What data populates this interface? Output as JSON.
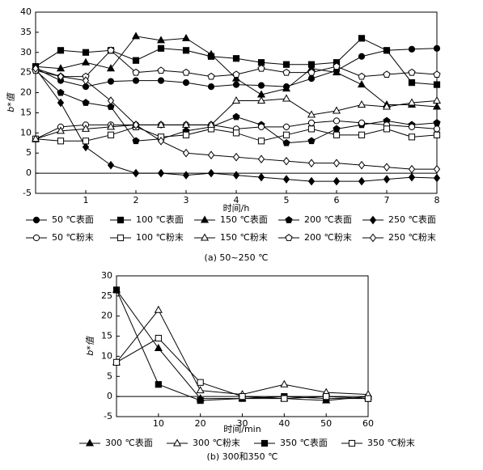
{
  "chart_data": [
    {
      "type": "line",
      "caption": "(a) 50~250 ℃",
      "x_label": "时间/h",
      "y_label": "b*值",
      "x": [
        0,
        0.5,
        1,
        1.5,
        2,
        2.5,
        3,
        3.5,
        4,
        4.5,
        5,
        5.5,
        6,
        6.5,
        7,
        7.5,
        8
      ],
      "xlim": [
        0,
        8
      ],
      "xticks": [
        1,
        2,
        3,
        4,
        5,
        6,
        7,
        8
      ],
      "ylim": [
        -5,
        40
      ],
      "yticks": [
        -5,
        0,
        5,
        10,
        15,
        20,
        25,
        30,
        35,
        40
      ],
      "series": [
        {
          "name": "50 ℃表面",
          "color": "#000000",
          "marker": "circle",
          "filled": true,
          "values": [
            26,
            23,
            21.5,
            22.8,
            23,
            23,
            22.5,
            21.5,
            22,
            21.8,
            21.5,
            23.5,
            25.5,
            29,
            30.5,
            30.8,
            31
          ]
        },
        {
          "name": "100 ℃表面",
          "color": "#000000",
          "marker": "square",
          "filled": true,
          "values": [
            26.5,
            30.5,
            30,
            30.5,
            28,
            31,
            30.5,
            29,
            28.5,
            27.5,
            27,
            27,
            27.5,
            33.5,
            30.5,
            22.5,
            22
          ]
        },
        {
          "name": "150 ℃表面",
          "color": "#000000",
          "marker": "triangle",
          "filled": true,
          "values": [
            26.5,
            26,
            27.5,
            26,
            34,
            33,
            33.5,
            29.5,
            23.5,
            19.5,
            21,
            26,
            25,
            22,
            17,
            17,
            16.5
          ]
        },
        {
          "name": "200 ℃表面",
          "color": "#000000",
          "marker": "pentagon",
          "filled": true,
          "values": [
            25.5,
            20,
            17.5,
            16.5,
            8,
            8.5,
            10.5,
            11.5,
            14,
            12,
            7.5,
            8,
            11,
            12,
            13,
            12,
            12.5
          ]
        },
        {
          "name": "250 ℃表面",
          "color": "#000000",
          "marker": "diamond",
          "filled": true,
          "values": [
            26,
            17.5,
            6.5,
            2,
            0,
            0,
            -0.5,
            0,
            -0.5,
            -1,
            -1.5,
            -2,
            -2,
            -2,
            -1.5,
            -1,
            -1.2
          ]
        },
        {
          "name": "50 ℃粉末",
          "color": "#000000",
          "marker": "circle",
          "filled": false,
          "values": [
            8.5,
            11.5,
            12,
            12,
            12,
            12,
            12,
            12,
            11,
            11.5,
            11.5,
            12.5,
            13,
            12.5,
            12,
            11.5,
            11
          ]
        },
        {
          "name": "100 ℃粉末",
          "color": "#000000",
          "marker": "square",
          "filled": false,
          "values": [
            8.5,
            8,
            8,
            9.5,
            11.5,
            9,
            9.5,
            11,
            10,
            8,
            9.5,
            11,
            9.5,
            9.5,
            11,
            9,
            9.5
          ]
        },
        {
          "name": "150 ℃粉末",
          "color": "#000000",
          "marker": "triangle",
          "filled": false,
          "values": [
            8.5,
            10.5,
            11,
            11.5,
            12,
            12,
            12,
            12,
            18,
            18,
            18.5,
            14.5,
            15.5,
            17,
            16.5,
            17.5,
            18
          ]
        },
        {
          "name": "200 ℃粉末",
          "color": "#000000",
          "marker": "pentagon",
          "filled": false,
          "values": [
            25.5,
            24,
            24,
            30.5,
            25,
            25.5,
            25,
            24,
            24.5,
            26,
            25,
            25,
            26.5,
            24,
            24.5,
            25,
            24.5
          ]
        },
        {
          "name": "250 ℃粉末",
          "color": "#000000",
          "marker": "diamond",
          "filled": false,
          "values": [
            26,
            24,
            23,
            18,
            12,
            8,
            5,
            4.5,
            4,
            3.5,
            3,
            2.5,
            2.5,
            2,
            1.5,
            1,
            1
          ]
        }
      ]
    },
    {
      "type": "line",
      "caption": "(b) 300和350 ℃",
      "x_label": "时间/min",
      "y_label": "b*值",
      "x": [
        0,
        10,
        20,
        30,
        40,
        50,
        60
      ],
      "xlim": [
        0,
        60
      ],
      "xticks": [
        10,
        20,
        30,
        40,
        50,
        60
      ],
      "ylim": [
        -5,
        30
      ],
      "yticks": [
        -5,
        0,
        5,
        10,
        15,
        20,
        25,
        30
      ],
      "series": [
        {
          "name": "300 ℃表面",
          "color": "#000000",
          "marker": "triangle",
          "filled": true,
          "values": [
            26.5,
            12,
            -0.5,
            -0.5,
            -0.5,
            -1,
            0
          ]
        },
        {
          "name": "300 ℃粉末",
          "color": "#000000",
          "marker": "triangle",
          "filled": false,
          "values": [
            8.5,
            21.5,
            1.5,
            0.5,
            3,
            1,
            0.5
          ]
        },
        {
          "name": "350 ℃表面",
          "color": "#000000",
          "marker": "square",
          "filled": true,
          "values": [
            26.5,
            3,
            -1,
            -0.5,
            0,
            -0.5,
            -0.5
          ]
        },
        {
          "name": "350 ℃粉末",
          "color": "#000000",
          "marker": "square",
          "filled": false,
          "values": [
            8.5,
            14.5,
            3.5,
            0,
            -0.5,
            0,
            -0.5
          ]
        }
      ]
    }
  ]
}
